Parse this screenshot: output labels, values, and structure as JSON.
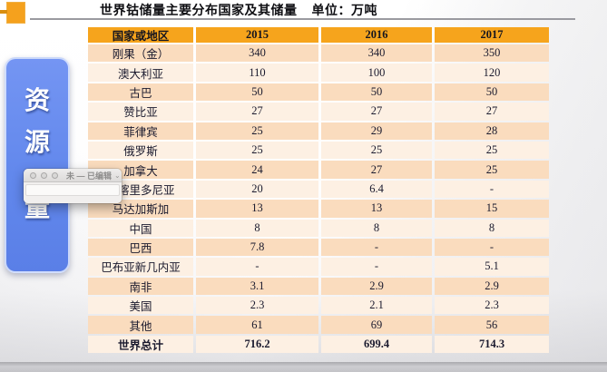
{
  "page": {
    "title": "世界钴储量主要分布国家及其储量",
    "unit": "单位：万吨"
  },
  "sidebar": {
    "label": "资源量",
    "chars": [
      "资",
      "源",
      "量"
    ]
  },
  "popup": {
    "title": "未 — 已编辑",
    "chevron": "⌄"
  },
  "table": {
    "columns": [
      "国家或地区",
      "2015",
      "2016",
      "2017"
    ],
    "rows": [
      [
        "刚果（金）",
        "340",
        "340",
        "350"
      ],
      [
        "澳大利亚",
        "110",
        "100",
        "120"
      ],
      [
        "古巴",
        "50",
        "50",
        "50"
      ],
      [
        "赞比亚",
        "27",
        "27",
        "27"
      ],
      [
        "菲律宾",
        "25",
        "29",
        "28"
      ],
      [
        "俄罗斯",
        "25",
        "25",
        "25"
      ],
      [
        "加拿大",
        "24",
        "27",
        "25"
      ],
      [
        "新喀里多尼亚",
        "20",
        "6.4",
        "-"
      ],
      [
        "马达加斯加",
        "13",
        "13",
        "15"
      ],
      [
        "中国",
        "8",
        "8",
        "8"
      ],
      [
        "巴西",
        "7.8",
        "-",
        "-"
      ],
      [
        "巴布亚新几内亚",
        "-",
        "-",
        "5.1"
      ],
      [
        "南非",
        "3.1",
        "2.9",
        "2.9"
      ],
      [
        "美国",
        "2.3",
        "2.1",
        "2.3"
      ],
      [
        "其他",
        "61",
        "69",
        "56"
      ],
      [
        "世界总计",
        "716.2",
        "699.4",
        "714.3"
      ]
    ],
    "total_row_label": "世界总计"
  },
  "colors": {
    "header_orange": "#F6A41C",
    "row_peach": "#FADCBE",
    "row_cream": "#FDF0E3",
    "sidebar_blue": "#6288EC",
    "accent_square": "#F5A11D",
    "underline_gray": "#9A9AA0"
  }
}
